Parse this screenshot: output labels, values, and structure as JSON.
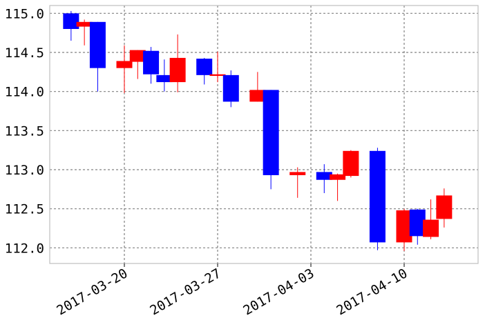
{
  "chart_data": {
    "type": "candlestick",
    "title": "",
    "xlabel": "",
    "ylabel": "",
    "ylim": [
      111.8,
      115.1
    ],
    "y_ticks": [
      112.0,
      112.5,
      113.0,
      113.5,
      114.0,
      114.5,
      115.0
    ],
    "y_tick_labels": [
      "112.0",
      "112.5",
      "113.0",
      "113.5",
      "114.0",
      "114.5",
      "115.0"
    ],
    "x_tick_labels": [
      "2017-03-20",
      "2017-03-27",
      "2017-04-03",
      "2017-04-10"
    ],
    "x_tick_dates": [
      "2017-03-20",
      "2017-03-27",
      "2017-04-03",
      "2017-04-10"
    ],
    "grid": true,
    "colors": {
      "up": "#ff0000",
      "down": "#0000ff",
      "grid": "#808080",
      "frame": "#bfbfbf"
    },
    "candles": [
      {
        "date": "2017-03-16",
        "open": 115.0,
        "high": 115.03,
        "low": 114.65,
        "close": 114.8
      },
      {
        "date": "2017-03-17",
        "open": 114.83,
        "high": 114.92,
        "low": 114.59,
        "close": 114.89
      },
      {
        "date": "2017-03-18",
        "open": 114.89,
        "high": 114.89,
        "low": 114.0,
        "close": 114.3
      },
      {
        "date": "2017-03-20",
        "open": 114.3,
        "high": 114.59,
        "low": 113.98,
        "close": 114.39
      },
      {
        "date": "2017-03-21",
        "open": 114.38,
        "high": 114.53,
        "low": 114.16,
        "close": 114.53
      },
      {
        "date": "2017-03-22",
        "open": 114.52,
        "high": 114.57,
        "low": 114.1,
        "close": 114.22
      },
      {
        "date": "2017-03-23",
        "open": 114.21,
        "high": 114.41,
        "low": 114.0,
        "close": 114.12
      },
      {
        "date": "2017-03-24",
        "open": 114.12,
        "high": 114.73,
        "low": 113.99,
        "close": 114.43
      },
      {
        "date": "2017-03-26",
        "open": 114.42,
        "high": 114.43,
        "low": 114.09,
        "close": 114.21
      },
      {
        "date": "2017-03-27",
        "open": 114.2,
        "high": 114.51,
        "low": 114.12,
        "close": 114.22
      },
      {
        "date": "2017-03-28",
        "open": 114.21,
        "high": 114.27,
        "low": 113.8,
        "close": 113.87
      },
      {
        "date": "2017-03-30",
        "open": 113.87,
        "high": 114.25,
        "low": 113.87,
        "close": 114.02
      },
      {
        "date": "2017-03-31",
        "open": 114.02,
        "high": 114.02,
        "low": 112.75,
        "close": 112.93
      },
      {
        "date": "2017-04-02",
        "open": 112.93,
        "high": 113.03,
        "low": 112.64,
        "close": 112.97
      },
      {
        "date": "2017-04-04",
        "open": 112.97,
        "high": 113.07,
        "low": 112.7,
        "close": 112.87
      },
      {
        "date": "2017-04-05",
        "open": 112.87,
        "high": 112.95,
        "low": 112.6,
        "close": 112.94
      },
      {
        "date": "2017-04-06",
        "open": 112.92,
        "high": 113.25,
        "low": 112.9,
        "close": 113.24
      },
      {
        "date": "2017-04-08",
        "open": 113.24,
        "high": 113.28,
        "low": 111.97,
        "close": 112.07
      },
      {
        "date": "2017-04-10",
        "open": 112.07,
        "high": 112.5,
        "low": 111.96,
        "close": 112.48
      },
      {
        "date": "2017-04-11",
        "open": 112.49,
        "high": 112.5,
        "low": 112.04,
        "close": 112.15
      },
      {
        "date": "2017-04-12",
        "open": 112.14,
        "high": 112.62,
        "low": 112.11,
        "close": 112.36
      },
      {
        "date": "2017-04-13",
        "open": 112.37,
        "high": 112.76,
        "low": 112.26,
        "close": 112.67
      }
    ]
  }
}
